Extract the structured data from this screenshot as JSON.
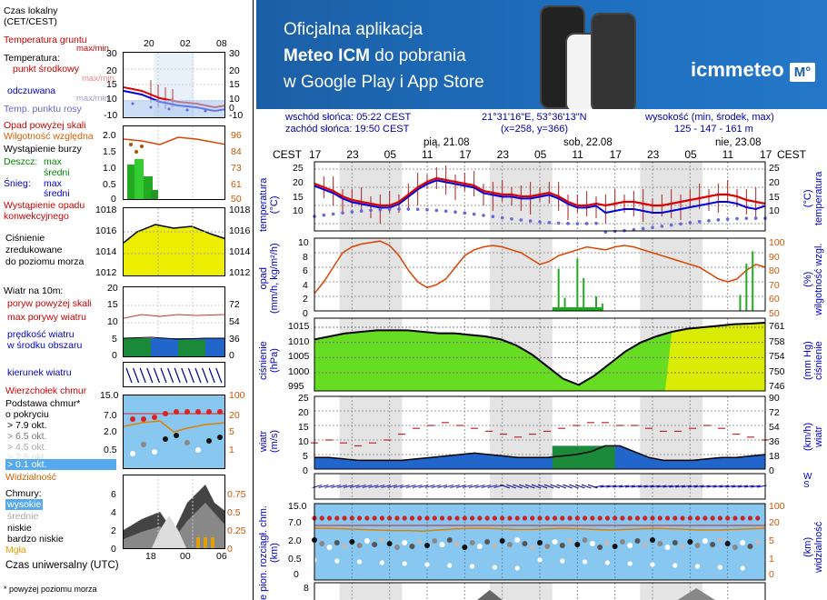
{
  "left_legend": {
    "timezone": "Czas lokalny\n(CET/CEST)",
    "top_hours": [
      "20",
      "02",
      "08"
    ],
    "temp": {
      "soil": "Temperatura gruntu",
      "soil_sub": "max/min",
      "title": "Temperatura:",
      "mid": "punkt środkowy",
      "mid_sub": "max/min",
      "feels": "odczuwana",
      "feels_sub": "max/min",
      "dew": "Temp. punktu rosy",
      "ticks_left": [
        "30",
        "20",
        "15",
        "10",
        "0",
        "-10"
      ],
      "ticks_right": [
        "30",
        "20",
        "15",
        "10",
        "0",
        "-10"
      ]
    },
    "precip": {
      "opad": "Opad powyżej skali",
      "humidity": "Wilgotność względna",
      "storm": "Wystąpienie burzy",
      "rain": "Deszcz:",
      "max": "max",
      "avg": "średni",
      "snow": "Śnieg:",
      "snow_max": "max",
      "snow_avg": "średni",
      "occurrence": "Wystąpienie opadu\nkonwekcyjnego",
      "ticks_left": [
        "2.0",
        "1.5",
        "1.0",
        "0.5",
        "0"
      ],
      "ticks_right": [
        "96",
        "84",
        "73",
        "61",
        "50"
      ]
    },
    "pressure": {
      "label": "Ciśnienie\nzredukowane\ndo poziomu morza",
      "ticks_left": [
        "1018",
        "1016",
        "1014",
        "1012"
      ],
      "ticks_right": [
        "1018",
        "1016",
        "1014",
        "1012"
      ]
    },
    "wind": {
      "title": "Wiatr na 10m:",
      "gusts_over": "poryw powyżej skali",
      "max_gusts": "max porywy wiatru",
      "speed": "prędkość wiatru\nw środku obszaru",
      "ticks_left": [
        "20",
        "15",
        "10",
        "5",
        "0"
      ],
      "ticks_right": [
        "72",
        "54",
        "36",
        "18",
        "0"
      ]
    },
    "wind_dir": "kierunek wiatru",
    "clouds": {
      "tops": "Wierzchołek chmur",
      "base": "Podstawa chmur*\no pokryciu",
      "o79": "> 7.9 okt.",
      "o65": "> 6.5 okt.",
      "o45": "> 4.5 okt.",
      "o25": "> 2.5 okt.",
      "o01": "> 0.1 okt.",
      "visibility": "Widzialność",
      "ticks_left": [
        "15.0",
        "7.0",
        "2.0",
        "0.5",
        "0"
      ],
      "ticks_right": [
        "100",
        "20",
        "5",
        "1",
        "0"
      ]
    },
    "cloud_cover": {
      "title": "Chmury:",
      "high": "wysokie",
      "mid": "średnie",
      "low": "niskie",
      "very_low": "bardzo niskie",
      "fog": "Mgła",
      "ticks_left": [
        "6",
        "4",
        "2",
        "0"
      ],
      "ticks_right": [
        "0.75",
        "0.5",
        "0.25",
        "0"
      ]
    },
    "utc_hours": [
      "18",
      "00",
      "06"
    ],
    "utc": "Czas uniwersalny (UTC)",
    "footnote": "* powyżej poziomu morza"
  },
  "banner": {
    "line1": "Oficjalna aplikacja",
    "line2_bold": "Meteo ICM",
    "line2_rest": " do pobrania",
    "line3": "w Google Play i App Store",
    "logo": "icmmeteo",
    "logo_badge": "M°"
  },
  "header": {
    "sunrise": "wschód słońca: 05:22 CEST",
    "sunset": "zachód słońca: 19:50 CEST",
    "coords": "21°31'16\"E, 53°36'13\"N",
    "grid": "(x=258,  y=366)",
    "altitude_label": "wysokość (min, środek, max)",
    "altitude": "125 - 147 - 161 m"
  },
  "timeline": {
    "tz": "CEST",
    "days": [
      "pią, 21.08",
      "sob, 22.08",
      "nie, 23.08"
    ],
    "hours": [
      "17",
      "23",
      "05",
      "11",
      "17",
      "23",
      "05",
      "11",
      "17",
      "23",
      "05",
      "11",
      "17"
    ]
  },
  "main": {
    "temp": {
      "label_left": "temperatura\n(°C)",
      "label_right": "(°C)\ntemperatura",
      "ticks": [
        "25",
        "20",
        "15",
        "10"
      ]
    },
    "precip": {
      "label_left": "opad\n(mm/h, kg/m²/h)",
      "label_right": "(%)\nwilgotność wzgl.",
      "ticks_left": [
        "10",
        "8",
        "6",
        "4",
        "2",
        "0"
      ],
      "ticks_right": [
        "100",
        "90",
        "80",
        "70",
        "60",
        "50"
      ]
    },
    "pressure": {
      "label_left": "ciśnienie\n(hPa)",
      "label_right": "(mm Hg)\nciśnienie",
      "ticks_left": [
        "1015",
        "1010",
        "1005",
        "1000",
        "995"
      ],
      "ticks_right": [
        "761",
        "758",
        "754",
        "750",
        "746"
      ]
    },
    "wind": {
      "label_left": "wiatr\n(m/s)",
      "label_right": "(km/h)\nwiatr",
      "ticks_left": [
        "25",
        "20",
        "15",
        "10",
        "5",
        "0"
      ],
      "ticks_right": [
        "90",
        "72",
        "54",
        "36",
        "18",
        "0"
      ]
    },
    "clouds": {
      "label_left": "e pion. rozciągł. chm.\n(km)",
      "label_right": "(km)\nwidzialność",
      "ticks_left": [
        "15.0",
        "7.0",
        "2.0",
        "0.5",
        "0"
      ],
      "ticks_right": [
        "100",
        "20",
        "5",
        "1",
        "0"
      ]
    },
    "cover_tick": "8"
  },
  "colors": {
    "temp_red": "#dd0000",
    "feels_blue": "#0000dd",
    "dew_blue": "#6666dd",
    "humidity": "#dd4400",
    "pressure_fill": "#66dd22",
    "pressure_fill_high": "#eeee00",
    "cloud_bg": "#88c8f0",
    "wind_fill": "#2266cc"
  }
}
